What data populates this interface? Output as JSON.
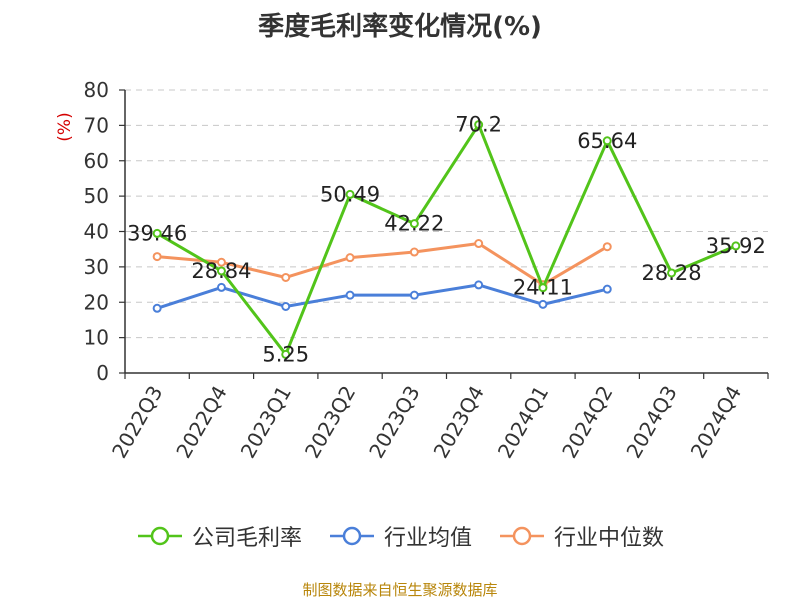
{
  "chart_data": {
    "type": "line",
    "title": "季度毛利率变化情况(%)",
    "ylabel": "(%)",
    "ylim": [
      0,
      80
    ],
    "yticks": [
      0,
      10,
      20,
      30,
      40,
      50,
      60,
      70,
      80
    ],
    "grid": true,
    "categories": [
      "2022Q3",
      "2022Q4",
      "2023Q1",
      "2023Q2",
      "2023Q3",
      "2023Q4",
      "2024Q1",
      "2024Q2",
      "2024Q3",
      "2024Q4"
    ],
    "series": [
      {
        "name": "公司毛利率",
        "color": "#52c41a",
        "values": [
          39.46,
          28.84,
          5.25,
          50.49,
          42.22,
          70.2,
          24.11,
          65.64,
          28.28,
          35.92
        ],
        "labels": [
          "39.46",
          "28.84",
          "5.25",
          "50.49",
          "42.22",
          "70.2",
          "24.11",
          "65.64",
          "28.28",
          "35.92"
        ]
      },
      {
        "name": "行业均值",
        "color": "#4a7fd9",
        "values": [
          18.3,
          24.2,
          18.8,
          22.0,
          22.0,
          24.9,
          19.4,
          23.7,
          null,
          null
        ]
      },
      {
        "name": "行业中位数",
        "color": "#f4935e",
        "values": [
          32.9,
          31.3,
          27.0,
          32.6,
          34.2,
          36.6,
          25.0,
          35.7,
          null,
          null
        ]
      }
    ],
    "legend_position": "bottom",
    "source_text": "制图数据来自恒生聚源数据库",
    "source_color": "#b8860b",
    "ylabel_color": "#d40000"
  }
}
